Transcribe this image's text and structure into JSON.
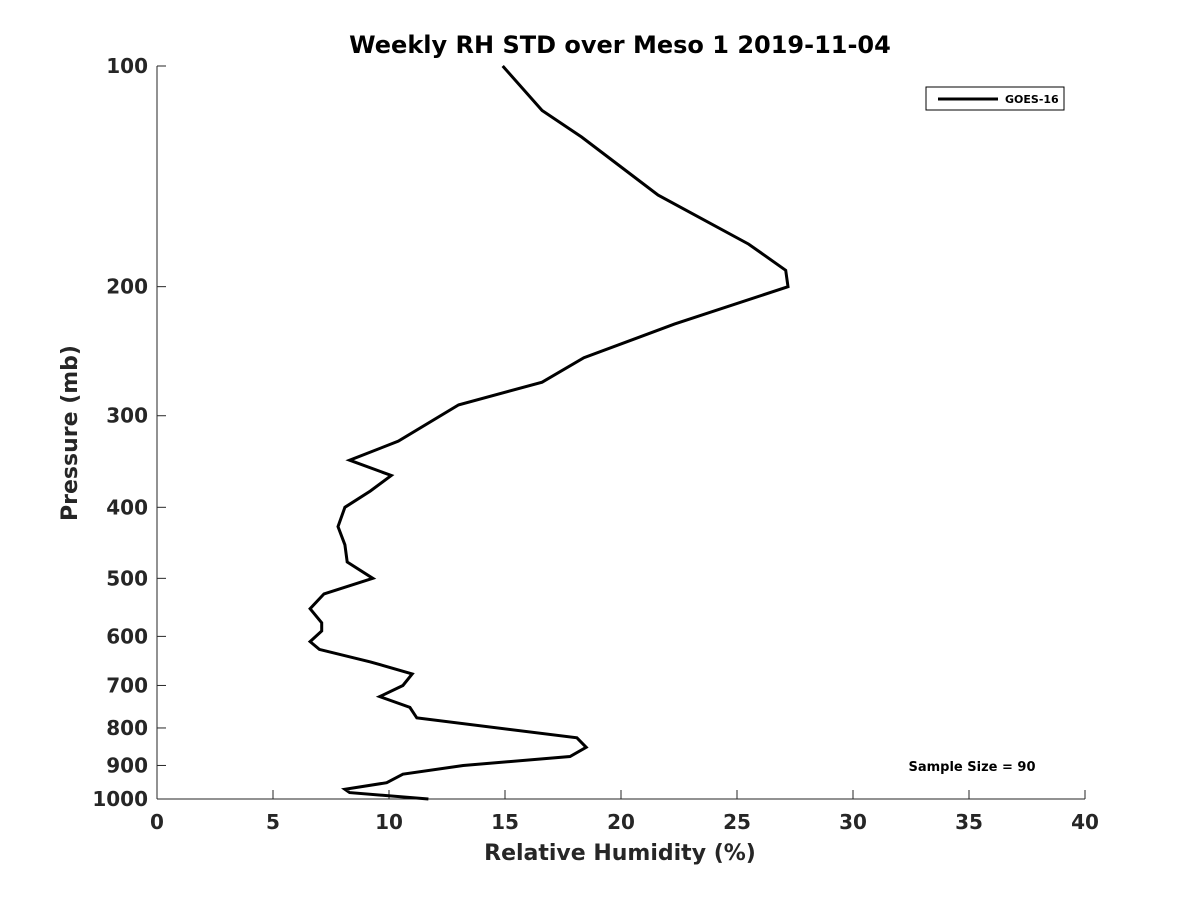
{
  "chart_data": {
    "type": "line",
    "title": "Weekly RH STD over Meso 1 2019-11-04",
    "xlabel": "Relative Humidity (%)",
    "ylabel": "Pressure (mb)",
    "xlim": [
      0,
      40
    ],
    "ylim": [
      100,
      1000
    ],
    "yscale": "log",
    "yreversed": true,
    "xticks": [
      0,
      5,
      10,
      15,
      20,
      25,
      30,
      35,
      40
    ],
    "xtick_labels": [
      "0",
      "5",
      "10",
      "15",
      "20",
      "25",
      "30",
      "35",
      "40"
    ],
    "yticks": [
      100,
      200,
      300,
      400,
      500,
      600,
      700,
      800,
      900,
      1000
    ],
    "ytick_labels": [
      "100",
      "200",
      "300",
      "400",
      "500",
      "600",
      "700",
      "800",
      "900",
      "1000"
    ],
    "legend": {
      "entries": [
        "GOES-16"
      ],
      "placement": "top-right"
    },
    "annotation": "Sample Size = 90",
    "series": [
      {
        "name": "GOES-16",
        "color": "#000000",
        "points": [
          [
            14.9,
            100
          ],
          [
            16.6,
            115
          ],
          [
            18.3,
            125
          ],
          [
            21.6,
            150
          ],
          [
            25.5,
            175
          ],
          [
            27.1,
            190
          ],
          [
            27.2,
            200
          ],
          [
            22.3,
            225
          ],
          [
            18.4,
            250
          ],
          [
            16.6,
            270
          ],
          [
            13.0,
            290
          ],
          [
            10.4,
            325
          ],
          [
            8.3,
            345
          ],
          [
            10.1,
            362
          ],
          [
            9.2,
            380
          ],
          [
            8.1,
            400
          ],
          [
            7.8,
            425
          ],
          [
            8.1,
            450
          ],
          [
            8.2,
            475
          ],
          [
            9.3,
            500
          ],
          [
            7.2,
            525
          ],
          [
            6.6,
            550
          ],
          [
            7.1,
            575
          ],
          [
            7.1,
            590
          ],
          [
            6.6,
            610
          ],
          [
            7.0,
            625
          ],
          [
            9.2,
            650
          ],
          [
            11.0,
            675
          ],
          [
            10.6,
            700
          ],
          [
            9.6,
            725
          ],
          [
            10.9,
            750
          ],
          [
            11.2,
            775
          ],
          [
            18.1,
            825
          ],
          [
            18.5,
            850
          ],
          [
            17.8,
            875
          ],
          [
            13.2,
            900
          ],
          [
            10.6,
            925
          ],
          [
            9.9,
            950
          ],
          [
            8.1,
            970
          ],
          [
            8.3,
            980
          ],
          [
            11.7,
            1000
          ]
        ]
      }
    ]
  }
}
